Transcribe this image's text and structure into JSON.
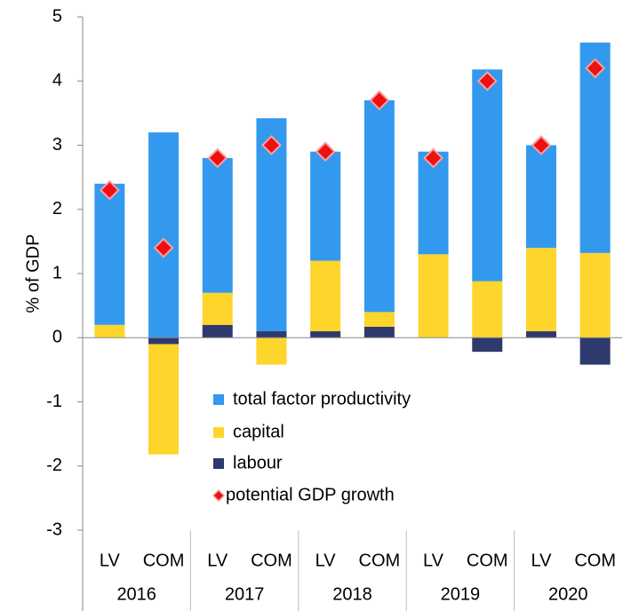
{
  "chart_data": {
    "type": "bar",
    "stacked": true,
    "y_label": "% of GDP",
    "categories": [
      "LV",
      "COM",
      "LV",
      "COM",
      "LV",
      "COM",
      "LV",
      "COM",
      "LV",
      "COM"
    ],
    "groups": [
      "2016",
      "2017",
      "2018",
      "2019",
      "2020"
    ],
    "series": [
      {
        "name": "total factor productivity",
        "color": "#3399ee",
        "values": [
          2.2,
          3.2,
          2.1,
          3.32,
          1.7,
          3.3,
          1.6,
          3.3,
          1.6,
          3.28
        ]
      },
      {
        "name": "capital",
        "color": "#fdd52b",
        "values": [
          0.2,
          -1.72,
          0.5,
          -0.42,
          1.1,
          0.23,
          1.3,
          0.88,
          1.3,
          1.32
        ]
      },
      {
        "name": "labour",
        "color": "#2e3a6e",
        "values": [
          0,
          -0.1,
          0.2,
          0.1,
          0.1,
          0.17,
          0,
          -0.22,
          0.1,
          -0.42
        ]
      },
      {
        "name": "potential GDP growth",
        "type": "scatter",
        "marker": "diamond",
        "color": "#ee1111",
        "values": [
          2.3,
          1.4,
          2.8,
          3.0,
          2.9,
          3.7,
          2.8,
          4.0,
          3.0,
          4.2
        ]
      }
    ],
    "ylim": [
      -3,
      5
    ],
    "yticks": [
      -3,
      -2,
      -1,
      0,
      1,
      2,
      3,
      4,
      5
    ],
    "grid": false
  }
}
